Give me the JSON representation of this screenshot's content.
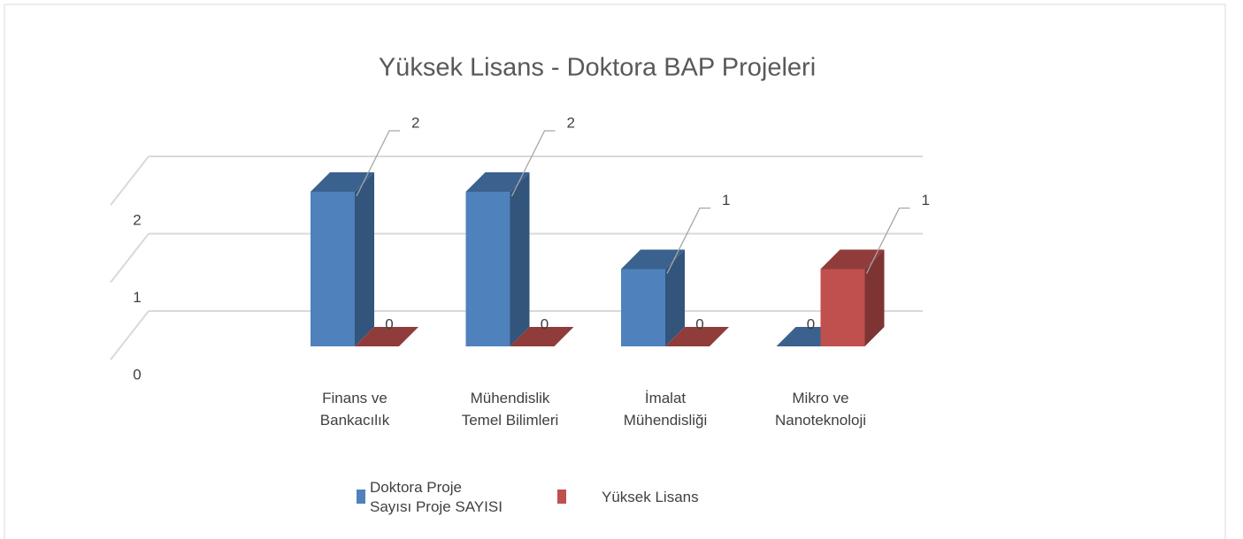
{
  "chart_data": {
    "type": "bar3d",
    "title": "Yüksek Lisans - Doktora BAP Projeleri",
    "categories": [
      "Finans ve Bankacılık",
      "Mühendislik Temel Bilimleri",
      "İmalat Mühendisliği",
      "Mikro ve Nanoteknoloji"
    ],
    "series": [
      {
        "name": "Doktora Proje Sayısı Proje SAYISI",
        "color": "#4f81bd",
        "values": [
          2,
          2,
          1,
          0
        ]
      },
      {
        "name": "Yüksek Lisans",
        "color": "#c0504d",
        "values": [
          0,
          0,
          0,
          1
        ]
      }
    ],
    "ylim": [
      0,
      2
    ],
    "yticks": [
      0,
      1,
      2
    ],
    "grid": true,
    "legend": "bottom"
  }
}
